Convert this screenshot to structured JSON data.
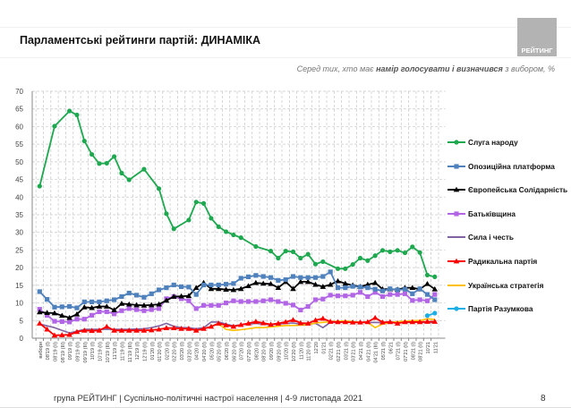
{
  "header": {
    "title": "Парламентські рейтинги партій: ДИНАМІКА",
    "subtitle_pre": "Серед тих, хто має ",
    "subtitle_bold": "намір голосувати і визначився",
    "subtitle_post": " з вибором, %",
    "logo_text": "РЕЙТИНГ"
  },
  "footer": {
    "text": "група РЕЙТИНГ | Суспільно-політичні настрої населення  | 4-9 листопада 2021",
    "page_number": "8"
  },
  "chart_data": {
    "type": "line",
    "title": "",
    "xlabel": "",
    "ylabel": "",
    "ylim": [
      0,
      70
    ],
    "yticks": [
      0,
      5,
      10,
      15,
      20,
      25,
      30,
      35,
      40,
      45,
      50,
      55,
      60,
      65,
      70
    ],
    "grid": true,
    "legend_position": "right",
    "categories": [
      "вибори",
      "08'19 (I)",
      "08'19 (II)",
      "08'19 (III)",
      "09'19 (I)",
      "09'19 (II)",
      "09'19 (III)",
      "10'19 (I)",
      "10'19 (II)",
      "10'19 (III)",
      "11'19 (I)",
      "11'19 (II)",
      "11'19 (III)",
      "12'19 (I)",
      "12'19 (II)",
      "01'20 (I)",
      "01'20 (II)",
      "02'20 (I)",
      "02'20 (II)",
      "03'20 (I)",
      "03'20 (II)",
      "04'20 (I)",
      "04'20 (II)",
      "05'20 (I)",
      "05'20 (II)",
      "06'20 (I)",
      "06'20 (II)",
      "07'20 (I)",
      "07'20 (II)",
      "08'20 (I)",
      "08'20 (II)",
      "09'20 (I)",
      "09'20 (II)",
      "10'20 (I)",
      "10'20 (II)",
      "11'20 (I)",
      "11'20 (II)",
      "12'20",
      "01'21",
      "02'21 (I)",
      "02'21 (II)",
      "03'21 (I)",
      "03'21 (II)",
      "04'21 (I)",
      "04'21 (II)",
      "04'21 (III)",
      "05'21 (I)",
      "06'21",
      "07'21 (I)",
      "07'21 (II)",
      "08'21 (I)",
      "08'21 (II)",
      "10'21",
      "11'21"
    ],
    "series": [
      {
        "name": "Слуга народу",
        "color": "#1ea84f",
        "marker": "circle",
        "values": [
          43.1,
          null,
          60.1,
          null,
          64.4,
          63.3,
          55.9,
          52.1,
          49.5,
          49.6,
          51.5,
          46.8,
          44.9,
          null,
          47.9,
          null,
          42.4,
          35.3,
          31.0,
          null,
          33.5,
          38.6,
          38.2,
          34.0,
          31.6,
          30.2,
          29.3,
          28.5,
          null,
          26.0,
          null,
          24.7,
          22.7,
          24.7,
          24.5,
          22.7,
          23.8,
          21.0,
          21.7,
          null,
          19.7,
          19.7,
          20.9,
          22.7,
          22.0,
          23.4,
          24.9,
          24.5,
          24.9,
          24.2,
          25.9,
          24.3,
          17.9,
          17.4
        ]
      },
      {
        "name": "Опозиційна платформа",
        "color": "#4f81bd",
        "marker": "square",
        "values": [
          13.2,
          11.0,
          8.8,
          8.9,
          9.0,
          8.6,
          10.3,
          10.3,
          10.3,
          10.6,
          10.9,
          11.8,
          12.8,
          12.2,
          11.6,
          12.6,
          13.7,
          14.3,
          15.1,
          14.6,
          14.5,
          12.4,
          15.1,
          15.1,
          15.1,
          15.3,
          15.5,
          17.0,
          17.4,
          17.8,
          17.5,
          17.2,
          16.4,
          16.6,
          17.5,
          17.2,
          17.2,
          17.2,
          17.5,
          18.8,
          14.3,
          14.3,
          14.7,
          14.5,
          14.3,
          13.9,
          13.4,
          14.0,
          13.7,
          13.9,
          12.6,
          14.0,
          12.4,
          10.9
        ]
      },
      {
        "name": "Європейська Солідарність",
        "color": "#000000",
        "marker": "triangle",
        "values": [
          7.4,
          7.2,
          7.1,
          6.4,
          5.8,
          6.8,
          8.8,
          8.6,
          9.0,
          9.0,
          8.0,
          9.8,
          9.6,
          9.4,
          9.3,
          9.4,
          9.6,
          10.7,
          11.8,
          11.9,
          12.0,
          14.3,
          15.7,
          14.0,
          14.0,
          13.8,
          13.7,
          14.0,
          14.8,
          15.7,
          15.5,
          15.4,
          14.3,
          16.0,
          14.0,
          16.0,
          16.0,
          15.2,
          14.6,
          15.2,
          16.2,
          15.5,
          15.0,
          14.6,
          15.2,
          15.7,
          13.9,
          13.9,
          13.8,
          14.3,
          14.3,
          13.9,
          15.4,
          13.9
        ]
      },
      {
        "name": "Батьківщина",
        "color": "#b266e6",
        "marker": "square",
        "values": [
          8.2,
          6.5,
          4.8,
          4.7,
          4.6,
          5.4,
          5.4,
          6.5,
          7.5,
          7.5,
          6.9,
          7.8,
          8.4,
          8.1,
          7.8,
          8.1,
          8.4,
          11.2,
          11.8,
          11.2,
          10.6,
          8.4,
          9.3,
          9.3,
          9.3,
          10.0,
          10.6,
          10.4,
          10.4,
          10.4,
          10.6,
          10.9,
          10.4,
          9.9,
          9.4,
          8.0,
          9.0,
          10.9,
          11.1,
          12.2,
          12.0,
          12.0,
          12.2,
          13.0,
          11.8,
          13.0,
          11.8,
          12.4,
          12.4,
          12.6,
          10.7,
          10.9,
          10.6,
          12.4
        ]
      },
      {
        "name": "Сила і честь",
        "color": "#8064a2",
        "marker": "none",
        "values": [
          4.0,
          3.5,
          3.0,
          2.2,
          1.5,
          2.0,
          2.5,
          2.5,
          2.5,
          2.5,
          2.5,
          2.5,
          2.5,
          2.6,
          2.7,
          3.0,
          3.5,
          4.2,
          3.4,
          3.0,
          3.0,
          2.7,
          3.0,
          4.6,
          4.6,
          4.0,
          3.5,
          3.8,
          4.0,
          4.2,
          4.0,
          3.8,
          4.0,
          4.2,
          4.3,
          4.0,
          4.0,
          4.2,
          3.0,
          4.5,
          4.5,
          4.6,
          4.5,
          4.5,
          4.4,
          4.5,
          4.4,
          4.6,
          4.5,
          4.4,
          4.6,
          4.5,
          4.4,
          4.5
        ]
      },
      {
        "name": "Радикальна партія",
        "color": "#ff0000",
        "marker": "triangle",
        "values": [
          4.2,
          2.5,
          0.8,
          0.9,
          1.0,
          1.8,
          2.2,
          2.1,
          2.2,
          3.3,
          2.2,
          2.2,
          2.2,
          2.2,
          2.2,
          2.3,
          2.5,
          2.9,
          2.9,
          2.7,
          2.7,
          2.2,
          2.7,
          3.3,
          4.2,
          3.7,
          3.3,
          3.8,
          4.2,
          4.7,
          4.3,
          3.9,
          4.2,
          4.6,
          5.2,
          4.3,
          4.2,
          5.1,
          5.6,
          4.7,
          4.6,
          4.6,
          4.5,
          4.5,
          4.6,
          5.8,
          4.5,
          4.6,
          4.2,
          4.6,
          4.6,
          4.6,
          4.7,
          4.7
        ]
      },
      {
        "name": "Українська стратегія",
        "color": "#ffc000",
        "marker": "none",
        "values": [
          null,
          null,
          null,
          null,
          null,
          null,
          null,
          null,
          null,
          null,
          null,
          null,
          null,
          null,
          null,
          null,
          null,
          null,
          null,
          null,
          null,
          null,
          null,
          null,
          4.0,
          2.5,
          2.2,
          2.4,
          2.7,
          3.0,
          3.0,
          3.2,
          3.4,
          3.6,
          3.6,
          3.7,
          3.8,
          4.3,
          4.5,
          4.7,
          4.8,
          4.9,
          4.7,
          4.5,
          4.5,
          3.0,
          4.0,
          4.5,
          4.7,
          4.8,
          5.0,
          5.0,
          5.5,
          5.3
        ]
      },
      {
        "name": "Партія Разумкова",
        "color": "#1eaee6",
        "marker": "circle",
        "values": [
          null,
          null,
          null,
          null,
          null,
          null,
          null,
          null,
          null,
          null,
          null,
          null,
          null,
          null,
          null,
          null,
          null,
          null,
          null,
          null,
          null,
          null,
          null,
          null,
          null,
          null,
          null,
          null,
          null,
          null,
          null,
          null,
          null,
          null,
          null,
          null,
          null,
          null,
          null,
          null,
          null,
          null,
          null,
          null,
          null,
          null,
          null,
          null,
          null,
          null,
          null,
          null,
          6.4,
          7.1
        ]
      }
    ]
  }
}
